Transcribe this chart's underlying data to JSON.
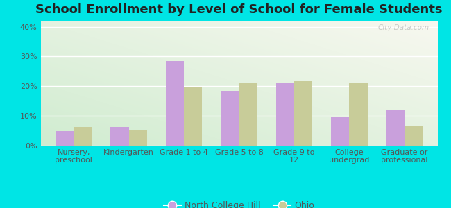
{
  "title": "School Enrollment by Level of School for Female Students",
  "categories": [
    "Nursery,\npreschool",
    "Kindergarten",
    "Grade 1 to 4",
    "Grade 5 to 8",
    "Grade 9 to\n12",
    "College\nundergrad",
    "Graduate or\nprofessional"
  ],
  "north_college_hill": [
    4.8,
    6.2,
    28.5,
    18.5,
    21.0,
    9.5,
    12.0
  ],
  "ohio": [
    6.2,
    5.2,
    19.8,
    21.0,
    21.8,
    21.0,
    6.5
  ],
  "bar_color_nch": "#c9a0dc",
  "bar_color_ohio": "#c8cc99",
  "background_outer": "#00e5e5",
  "background_plot_topleft": "#d0ecd0",
  "background_plot_bottomright": "#f8f8f0",
  "ylabel_ticks": [
    "0%",
    "10%",
    "20%",
    "30%",
    "40%"
  ],
  "yticks": [
    0,
    10,
    20,
    30,
    40
  ],
  "ylim": [
    0,
    42
  ],
  "legend_label_nch": "North College Hill",
  "legend_label_ohio": "Ohio",
  "title_fontsize": 13,
  "tick_fontsize": 8.0,
  "legend_fontsize": 9,
  "watermark": "City-Data.com"
}
